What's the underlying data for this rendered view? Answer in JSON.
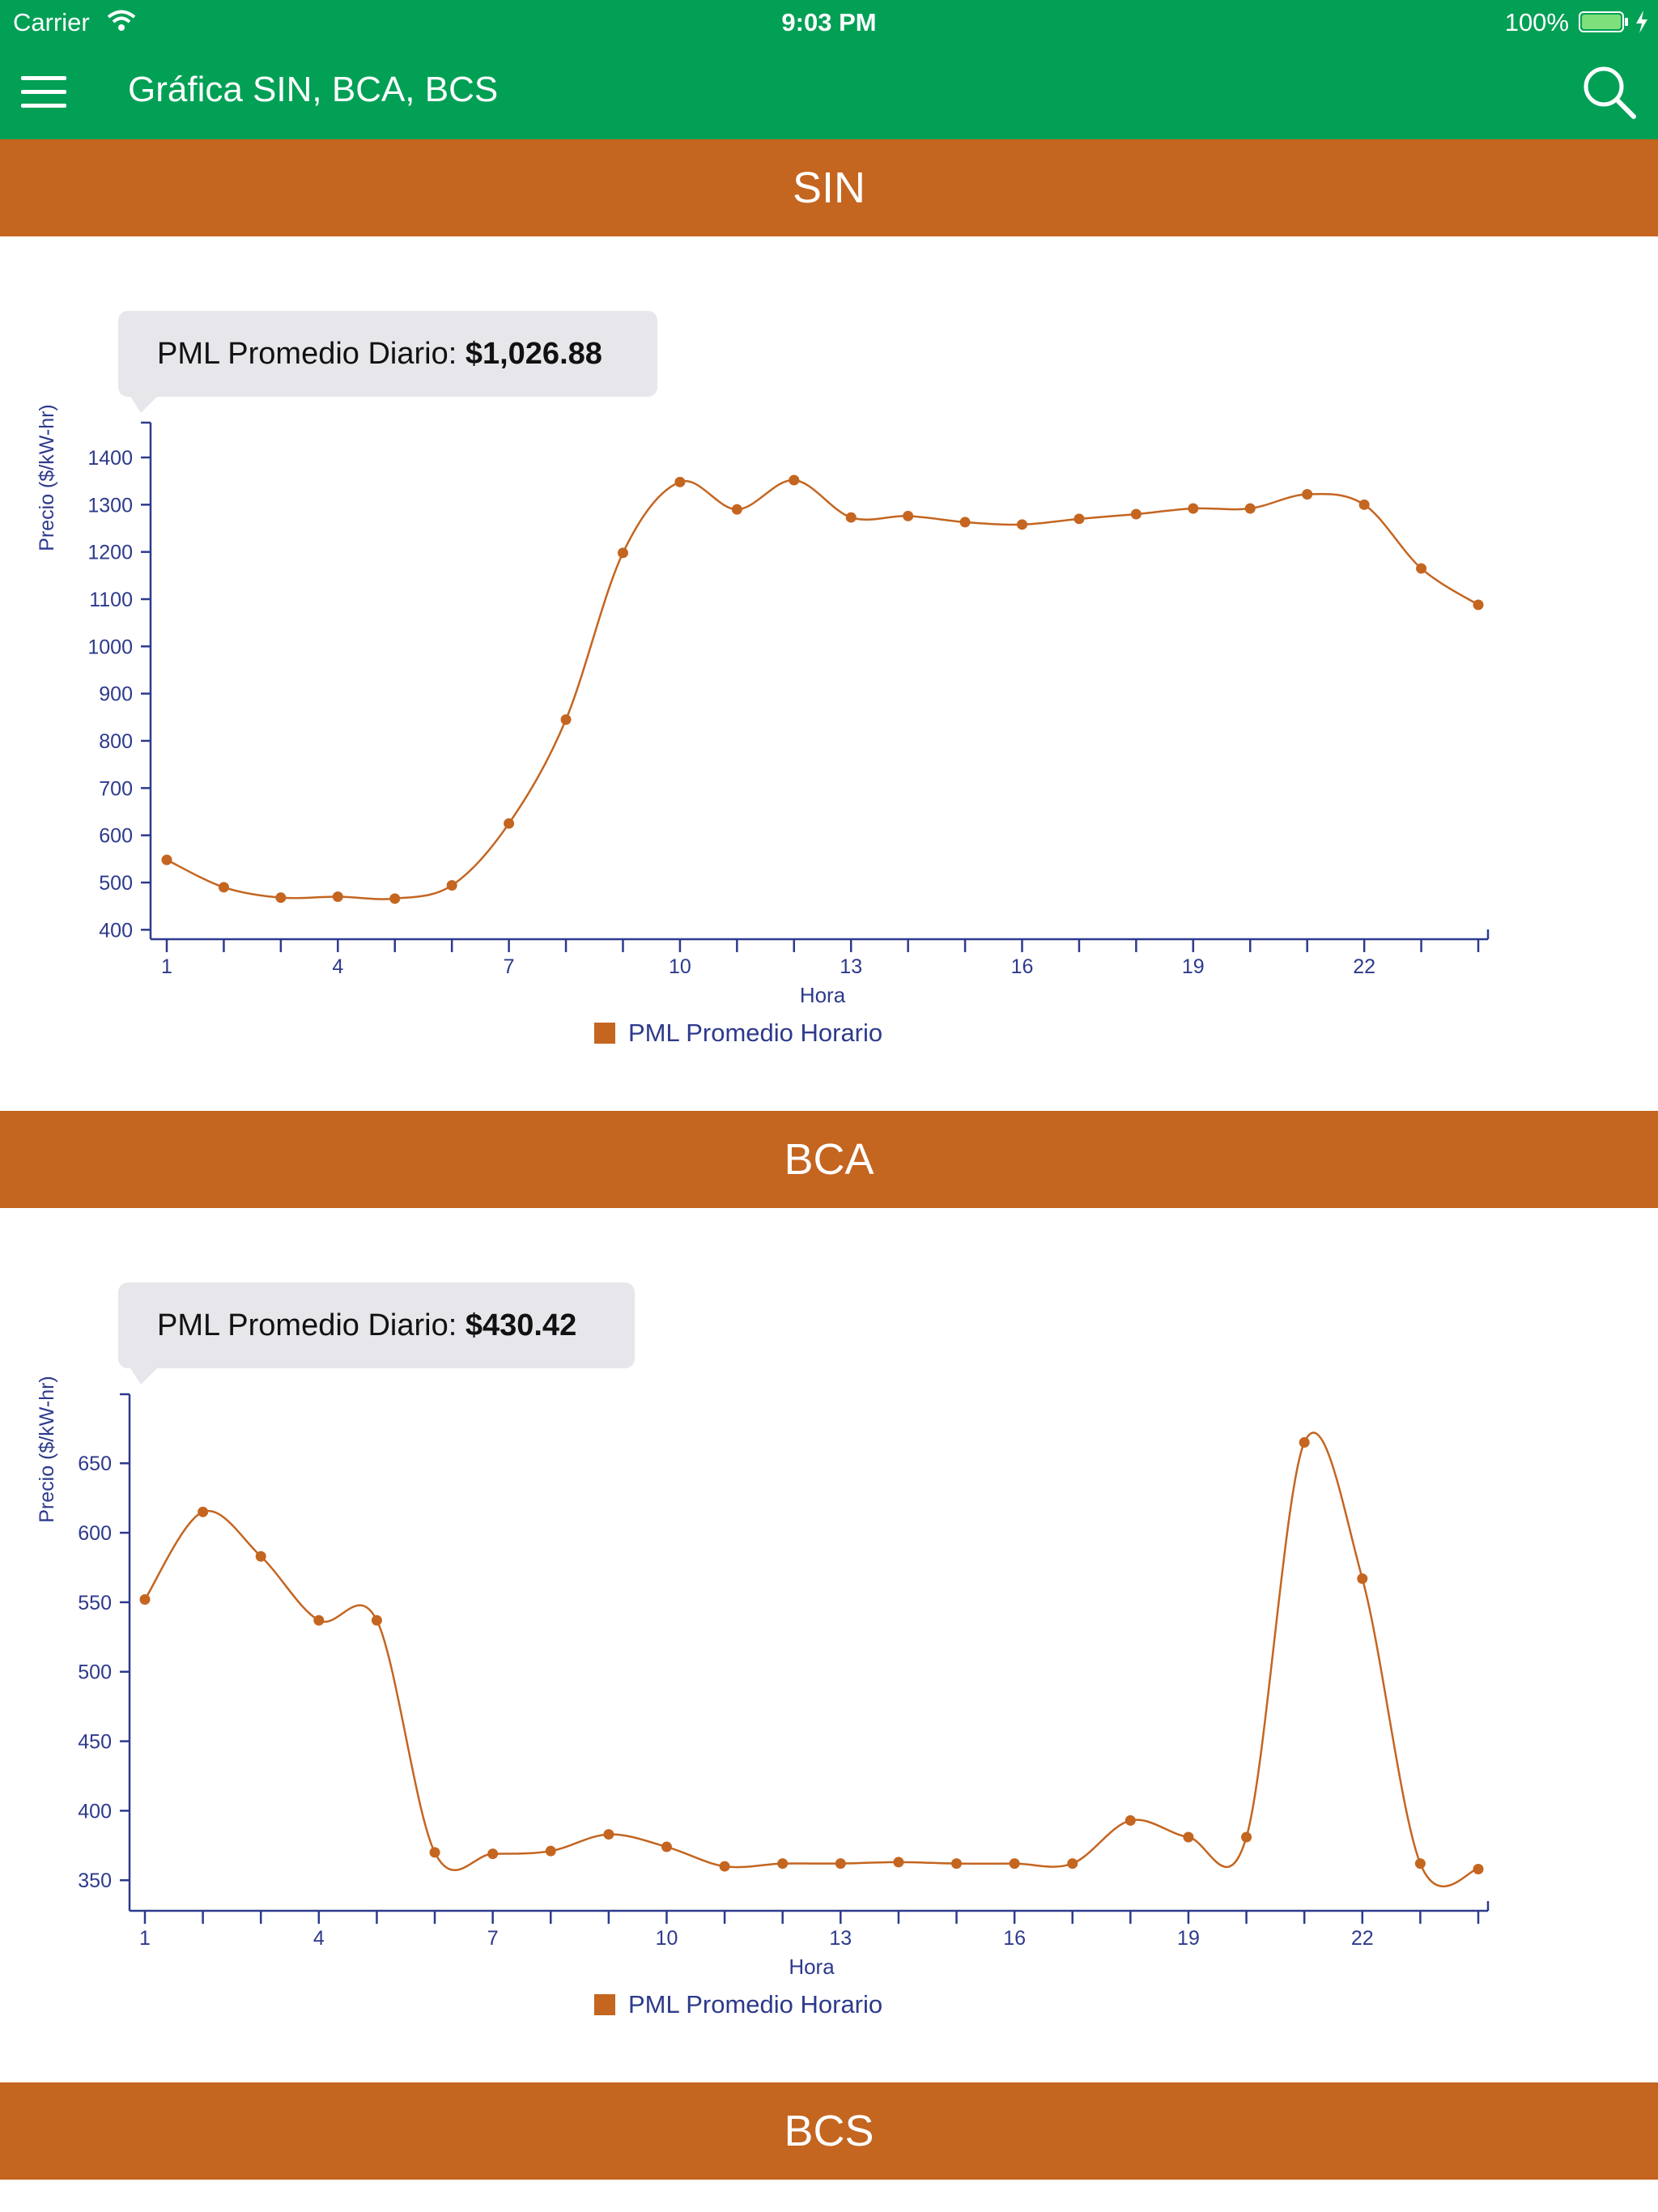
{
  "status": {
    "carrier": "Carrier",
    "time": "9:03 PM",
    "battery": "100%"
  },
  "nav": {
    "title": "Gráfica SIN, BCA, BCS",
    "menu_icon": "hamburger-menu-icon",
    "search_icon": "search-icon"
  },
  "colors": {
    "brand_green": "#01a055",
    "section_orange": "#c46520",
    "axis_blue": "#2d3a8c",
    "tooltip_bg": "#e6e6eb"
  },
  "sections": [
    {
      "title": "SIN",
      "tooltip_label": "PML Promedio Diario: ",
      "tooltip_value": "$1,026.88"
    },
    {
      "title": "BCA",
      "tooltip_label": "PML Promedio Diario: ",
      "tooltip_value": "$430.42"
    },
    {
      "title": "BCS"
    }
  ],
  "chart_data": [
    {
      "type": "line",
      "title": "",
      "xlabel": "Hora",
      "ylabel": "Precio ($/kW-hr)",
      "xlim": [
        1,
        24
      ],
      "ylim": [
        380,
        1460
      ],
      "xticks": [
        1,
        4,
        7,
        10,
        13,
        16,
        19,
        22
      ],
      "yticks": [
        400,
        500,
        600,
        700,
        800,
        900,
        1000,
        1100,
        1200,
        1300,
        1400
      ],
      "legend": "bottom-center",
      "series": [
        {
          "name": "PML Promedio Horario",
          "color": "#c46520",
          "x": [
            1,
            2,
            3,
            4,
            5,
            6,
            7,
            8,
            9,
            10,
            11,
            12,
            13,
            14,
            15,
            16,
            17,
            18,
            19,
            20,
            21,
            22,
            23,
            24
          ],
          "y": [
            548,
            490,
            468,
            470,
            466,
            494,
            625,
            845,
            1198,
            1348,
            1290,
            1352,
            1273,
            1276,
            1263,
            1258,
            1270,
            1280,
            1292,
            1292,
            1322,
            1300,
            1165,
            1088
          ]
        }
      ]
    },
    {
      "type": "line",
      "title": "",
      "xlabel": "Hora",
      "ylabel": "Precio ($/kW-hr)",
      "xlim": [
        1,
        24
      ],
      "ylim": [
        328,
        695
      ],
      "xticks": [
        1,
        4,
        7,
        10,
        13,
        16,
        19,
        22
      ],
      "yticks": [
        350,
        400,
        450,
        500,
        550,
        600,
        650
      ],
      "legend": "bottom-center",
      "series": [
        {
          "name": "PML Promedio Horario",
          "color": "#c46520",
          "x": [
            1,
            2,
            3,
            4,
            5,
            6,
            7,
            8,
            9,
            10,
            11,
            12,
            13,
            14,
            15,
            16,
            17,
            18,
            19,
            20,
            21,
            22,
            23,
            24
          ],
          "y": [
            552,
            615,
            583,
            537,
            537,
            370,
            369,
            371,
            383,
            374,
            360,
            362,
            362,
            363,
            362,
            362,
            362,
            393,
            381,
            381,
            665,
            567,
            362,
            358
          ]
        }
      ]
    }
  ]
}
